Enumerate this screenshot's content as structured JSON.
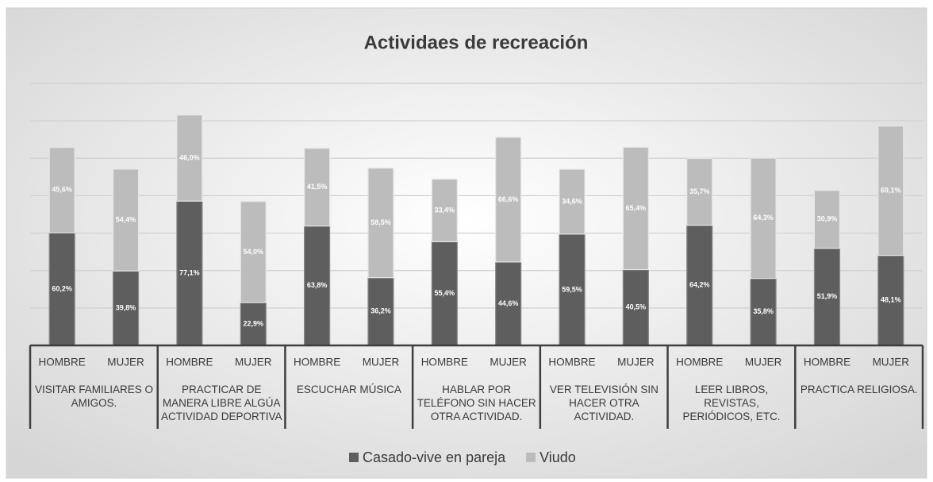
{
  "chart_data": {
    "type": "stacked_bar",
    "title": "Actividaes de recreación",
    "categories": [
      "HOMBRE",
      "MUJER",
      "HOMBRE",
      "MUJER",
      "HOMBRE",
      "MUJER",
      "HOMBRE",
      "MUJER",
      "HOMBRE",
      "MUJER",
      "HOMBRE",
      "MUJER",
      "HOMBRE",
      "MUJER"
    ],
    "groups": [
      "VISITAR FAMILIARES O AMIGOS.",
      "PRACTICAR DE MANERA LIBRE ALGÚA ACTIVIDAD DEPORTIVA",
      "ESCUCHAR MÚSICA",
      "HABLAR POR TELÉFONO SIN HACER OTRA ACTIVIDAD.",
      "VER TELEVISIÓN SIN HACER OTRA ACTIVIDAD.",
      "LEER LIBROS, REVISTAS, PERIÓDICOS, ETC.",
      "PRACTICA RELIGIOSA."
    ],
    "series": [
      {
        "name": "Casado-vive en pareja",
        "color": "#5e5e5e",
        "values": [
          60.2,
          39.8,
          77.1,
          22.9,
          63.8,
          36.2,
          55.4,
          44.6,
          59.5,
          40.5,
          64.2,
          35.8,
          51.9,
          48.1
        ],
        "value_labels": [
          "60,2%",
          "39,8%",
          "77,1%",
          "22,9%",
          "63,8%",
          "36,2%",
          "55,4%",
          "44,6%",
          "59,5%",
          "40,5%",
          "64,2%",
          "35,8%",
          "51,9%",
          "48,1%"
        ]
      },
      {
        "name": "Viudo",
        "color": "#bcbcbc",
        "values": [
          45.6,
          54.4,
          46.0,
          54.0,
          41.5,
          58.5,
          33.4,
          66.6,
          34.6,
          65.4,
          35.7,
          64.3,
          30.9,
          69.1
        ],
        "value_labels": [
          "45,6%",
          "54,4%",
          "46,0%",
          "54,0%",
          "41,5%",
          "58,5%",
          "33,4%",
          "66,6%",
          "34,6%",
          "65,4%",
          "35,7%",
          "64,3%",
          "30,9%",
          "69,1%"
        ]
      }
    ],
    "ylim": [
      0,
      140
    ],
    "yticks": [
      0,
      20,
      40,
      60,
      80,
      100,
      120,
      140
    ],
    "grid": true,
    "legend": "bottom"
  }
}
